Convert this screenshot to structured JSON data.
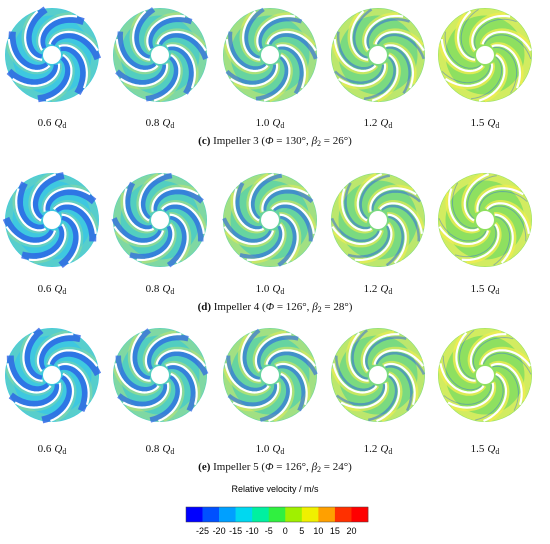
{
  "rows": [
    {
      "panels": [
        {
          "value": "0.6",
          "symbol": "Q",
          "subscript": "d"
        },
        {
          "value": "0.8",
          "symbol": "Q",
          "subscript": "d"
        },
        {
          "value": "1.0",
          "symbol": "Q",
          "subscript": "d"
        },
        {
          "value": "1.2",
          "symbol": "Q",
          "subscript": "d"
        },
        {
          "value": "1.5",
          "symbol": "Q",
          "subscript": "d"
        }
      ],
      "caption": [
        {
          "text": "(c)",
          "style": "bold"
        },
        {
          "text": " Impeller 3 (",
          "style": "normal"
        },
        {
          "text": "Φ",
          "style": "italic"
        },
        {
          "text": " = 130°, ",
          "style": "normal"
        },
        {
          "text": "β",
          "style": "italic"
        },
        {
          "text": "2",
          "style": "sub"
        },
        {
          "text": " = 26°)",
          "style": "normal"
        }
      ]
    },
    {
      "panels": [
        {
          "value": "0.6",
          "symbol": "Q",
          "subscript": "d"
        },
        {
          "value": "0.8",
          "symbol": "Q",
          "subscript": "d"
        },
        {
          "value": "1.0",
          "symbol": "Q",
          "subscript": "d"
        },
        {
          "value": "1.2",
          "symbol": "Q",
          "subscript": "d"
        },
        {
          "value": "1.5",
          "symbol": "Q",
          "subscript": "d"
        }
      ],
      "caption": [
        {
          "text": "(d)",
          "style": "bold"
        },
        {
          "text": " Impeller 4 (",
          "style": "normal"
        },
        {
          "text": "Φ",
          "style": "italic"
        },
        {
          "text": " = 126°, ",
          "style": "normal"
        },
        {
          "text": "β",
          "style": "italic"
        },
        {
          "text": "2",
          "style": "sub"
        },
        {
          "text": " = 28°)",
          "style": "normal"
        }
      ]
    },
    {
      "panels": [
        {
          "value": "0.6",
          "symbol": "Q",
          "subscript": "d"
        },
        {
          "value": "0.8",
          "symbol": "Q",
          "subscript": "d"
        },
        {
          "value": "1.0",
          "symbol": "Q",
          "subscript": "d"
        },
        {
          "value": "1.2",
          "symbol": "Q",
          "subscript": "d"
        },
        {
          "value": "1.5",
          "symbol": "Q",
          "subscript": "d"
        }
      ],
      "caption": [
        {
          "text": "(e)",
          "style": "bold"
        },
        {
          "text": " Impeller 5 (",
          "style": "normal"
        },
        {
          "text": "Φ",
          "style": "italic"
        },
        {
          "text": " = 126°, ",
          "style": "normal"
        },
        {
          "text": "β",
          "style": "italic"
        },
        {
          "text": "2",
          "style": "sub"
        },
        {
          "text": " = 24°)",
          "style": "normal"
        }
      ]
    }
  ],
  "colorbar": {
    "title": "Relative velocity / m/s",
    "ticks": [
      -25,
      -20,
      -15,
      -10,
      -5,
      0,
      5,
      10,
      15,
      20
    ],
    "colors": [
      "#0000ff",
      "#0050ff",
      "#00a0ff",
      "#00d8f0",
      "#00f0a0",
      "#30f040",
      "#a0f000",
      "#f0f000",
      "#ffa000",
      "#ff3000",
      "#ff0000"
    ]
  }
}
